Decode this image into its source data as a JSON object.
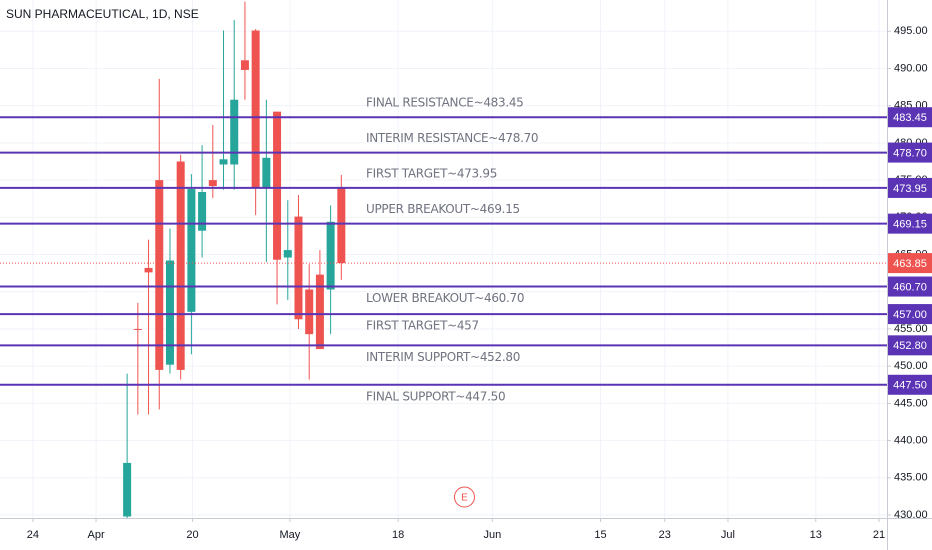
{
  "chart_data": {
    "type": "candlestick",
    "title": "SUN PHARMACEUTICAL, 1D, NSE",
    "x": [
      0,
      1,
      2,
      3,
      4,
      5,
      6,
      7,
      8,
      9,
      10,
      11,
      12,
      13,
      14,
      15,
      16,
      17,
      18,
      19,
      20
    ],
    "open": [
      429.8,
      455.0,
      463.2,
      475.0,
      450.2,
      477.5,
      457.3,
      468.2,
      475.0,
      477.1,
      477.1,
      491.1,
      495.1,
      474.0,
      484.2,
      464.6,
      470.1,
      460.3,
      462.3,
      460.3,
      474.0
    ],
    "high": [
      449.0,
      458.5,
      467.0,
      488.6,
      468.5,
      478.4,
      475.8,
      479.7,
      482.4,
      495.1,
      496.5,
      499.0,
      495.3,
      485.8,
      484.2,
      472.3,
      473.0,
      463.7,
      465.6,
      471.6,
      475.7
    ],
    "low": [
      428.0,
      443.5,
      443.5,
      444.2,
      449.0,
      448.2,
      451.6,
      464.6,
      472.6,
      473.7,
      473.7,
      485.8,
      470.3,
      464.0,
      458.3,
      458.9,
      455.0,
      448.2,
      452.3,
      454.3,
      461.6
    ],
    "close": [
      437.0,
      454.9,
      462.6,
      449.5,
      464.2,
      449.5,
      473.8,
      473.4,
      474.2,
      477.8,
      485.8,
      489.8,
      474.0,
      478.0,
      464.3,
      465.6,
      456.3,
      454.3,
      452.3,
      469.4,
      463.85
    ],
    "up_color": "#26a69a",
    "down_color": "#ef5350",
    "last_label": "463.85",
    "level_color": "#5b34b5",
    "levels": [
      {
        "value": 483.45,
        "label": "483.45",
        "text": "FINAL RESISTANCE~483.45"
      },
      {
        "value": 478.7,
        "label": "478.70",
        "text": "INTERIM RESISTANCE~478.70"
      },
      {
        "value": 473.95,
        "label": "473.95",
        "text": "FIRST TARGET~473.95"
      },
      {
        "value": 469.15,
        "label": "469.15",
        "text": "UPPER BREAKOUT~469.15"
      },
      {
        "value": 460.7,
        "label": "460.70",
        "text": "LOWER BREAKOUT~460.70"
      },
      {
        "value": 457.0,
        "label": "457.00",
        "text": "FIRST TARGET~457"
      },
      {
        "value": 452.8,
        "label": "452.80",
        "text": "INTERIM SUPPORT~452.80"
      },
      {
        "value": 447.5,
        "label": "447.50",
        "text": "FINAL SUPPORT~447.50"
      }
    ],
    "events": [
      {
        "x": 31.5,
        "label": "E"
      }
    ],
    "xlim": [
      -11.87,
      70.95
    ],
    "xticks": [
      {
        "value": -8.8,
        "label": "24"
      },
      {
        "value": -2.9,
        "label": "Apr"
      },
      {
        "value": 6.1,
        "label": "20"
      },
      {
        "value": 15.2,
        "label": "May"
      },
      {
        "value": 25.3,
        "label": "18"
      },
      {
        "value": 34.1,
        "label": "Jun"
      },
      {
        "value": 44.2,
        "label": "15"
      },
      {
        "value": 50.2,
        "label": "23"
      },
      {
        "value": 56.1,
        "label": "Jul"
      },
      {
        "value": 64.3,
        "label": "13"
      },
      {
        "value": 70.2,
        "label": "21"
      }
    ],
    "ylim": [
      429.6,
      499.2
    ],
    "yticks": [
      {
        "value": 430,
        "label": "430.00"
      },
      {
        "value": 435,
        "label": "435.00"
      },
      {
        "value": 440,
        "label": "440.00"
      },
      {
        "value": 445,
        "label": "445.00"
      },
      {
        "value": 450,
        "label": "450.00"
      },
      {
        "value": 455,
        "label": "455.00"
      },
      {
        "value": 460,
        "label": "460.00"
      },
      {
        "value": 465,
        "label": "465.00"
      },
      {
        "value": 470,
        "label": "470.00"
      },
      {
        "value": 475,
        "label": "475.00"
      },
      {
        "value": 480,
        "label": "480.00"
      },
      {
        "value": 485,
        "label": "485.00"
      },
      {
        "value": 490,
        "label": "490.00"
      },
      {
        "value": 495,
        "label": "495.00"
      }
    ],
    "grid": true
  }
}
